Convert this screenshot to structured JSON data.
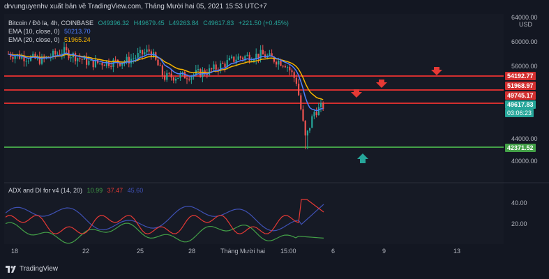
{
  "publisher_line": "drvunguyenhv xuất bản về TradingView.com, Tháng Mười hai 05, 2021 15:53 UTC+7",
  "legend": {
    "symbol": "Bitcoin / Đô la, 4h, COINBASE",
    "ohlc": {
      "o": "O49396.32",
      "h": "H49679.45",
      "l": "L49263.84",
      "c": "C49617.83",
      "chg": "+221.50 (+0.45%)"
    },
    "ema10": {
      "label": "EMA (10, close, 0)",
      "value": "50213.70",
      "color": "#4f7fff"
    },
    "ema20": {
      "label": "EMA (20, close, 0)",
      "value": "51965.24",
      "color": "#f5b300"
    }
  },
  "indicator": {
    "label": "ADX and DI for v4 (14, 20)",
    "v1": "10.99",
    "v2": "37.47",
    "v3": "45.60"
  },
  "price_axis": {
    "currency": "USD",
    "ticks": [
      "64000.00",
      "60000.00",
      "56000.00",
      "44000.00",
      "40000.00"
    ],
    "indicator_ticks": [
      "40.00",
      "20.00"
    ]
  },
  "price_tags": [
    {
      "value": "54192.77",
      "color": "#d32f2f"
    },
    {
      "value": "51968.97",
      "color": "#d32f2f"
    },
    {
      "value": "49745.17",
      "color": "#d32f2f"
    },
    {
      "value": "49617.83",
      "color": "#26a69a"
    },
    {
      "value": "03:06:23",
      "color": "#26a69a"
    },
    {
      "value": "42371.52",
      "color": "#43a047"
    }
  ],
  "time_axis": [
    "18",
    "22",
    "25",
    "28",
    "Tháng Mười hai",
    "15:00",
    "6",
    "9",
    "13"
  ],
  "brand": "TradingView"
}
